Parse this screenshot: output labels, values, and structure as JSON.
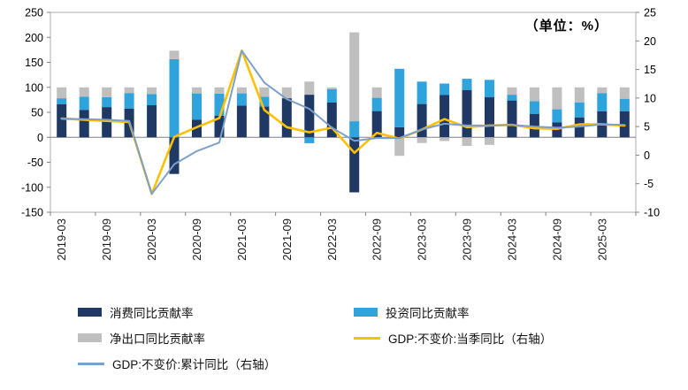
{
  "chart_data": {
    "type": "combo-stacked-bar-line",
    "unit_label": "（单位：%）",
    "categories": [
      "2019-03",
      "2019-06",
      "2019-09",
      "2019-12",
      "2020-03",
      "2020-06",
      "2020-09",
      "2020-12",
      "2021-03",
      "2021-06",
      "2021-09",
      "2021-12",
      "2022-03",
      "2022-06",
      "2022-09",
      "2022-12",
      "2023-03",
      "2023-06",
      "2023-09",
      "2023-12",
      "2024-03",
      "2024-06",
      "2024-09",
      "2024-12",
      "2025-03",
      "2025-06"
    ],
    "x_label_every": 2,
    "bar_series": [
      {
        "name": "消费同比贡献率",
        "color": "#1F3864",
        "axis": "left",
        "values": [
          66.4,
          55.0,
          60.5,
          57.6,
          64.1,
          -73.3,
          34.9,
          43.0,
          63.4,
          61.7,
          78.1,
          85.3,
          69.4,
          -110.0,
          52.4,
          20.0,
          66.6,
          84.5,
          94.8,
          80.0,
          73.7,
          47.0,
          29.8,
          40.0,
          51.7,
          52.3
        ]
      },
      {
        "name": "投资同比贡献率",
        "color": "#2EA3DC",
        "axis": "left",
        "values": [
          11.7,
          26.0,
          19.8,
          31.0,
          22.5,
          156.6,
          52.9,
          44.6,
          24.5,
          19.2,
          0.1,
          -11.6,
          26.9,
          32.1,
          26.7,
          117.0,
          44.8,
          23.0,
          22.3,
          35.0,
          11.6,
          25.5,
          26.3,
          30.0,
          36.8,
          24.7
        ]
      },
      {
        "name": "净出口同比贡献率",
        "color": "#BFBFBF",
        "axis": "left",
        "values": [
          21.9,
          19.0,
          19.7,
          11.4,
          13.4,
          16.7,
          12.2,
          12.4,
          12.1,
          19.1,
          21.8,
          26.3,
          3.7,
          177.9,
          20.9,
          -37.0,
          -11.4,
          -7.5,
          -17.1,
          -15.0,
          14.7,
          27.5,
          43.9,
          30.0,
          11.5,
          23.0
        ]
      }
    ],
    "line_series": [
      {
        "name": "GDP:不变价:当季同比（右轴）",
        "color": "#FFC000",
        "axis": "right",
        "values": [
          6.4,
          6.2,
          6.0,
          5.8,
          -6.8,
          3.2,
          4.9,
          6.5,
          18.3,
          7.9,
          4.9,
          4.0,
          4.8,
          0.4,
          3.9,
          2.9,
          4.5,
          6.3,
          4.9,
          5.2,
          5.3,
          4.7,
          4.6,
          5.4,
          5.4,
          5.2
        ]
      },
      {
        "name": "GDP:不变价:累计同比（右轴）",
        "color": "#7DA0CB",
        "axis": "right",
        "values": [
          6.4,
          6.3,
          6.2,
          6.0,
          -6.8,
          -1.6,
          0.7,
          2.2,
          18.3,
          12.7,
          9.8,
          8.1,
          4.8,
          2.5,
          3.0,
          3.0,
          4.5,
          5.5,
          5.2,
          5.2,
          5.3,
          5.0,
          4.8,
          5.0,
          5.4,
          5.3
        ]
      }
    ],
    "left_axis": {
      "min": -150,
      "max": 250,
      "step": 50,
      "ticks": [
        250,
        200,
        150,
        100,
        50,
        0,
        -50,
        -100,
        -150
      ]
    },
    "right_axis": {
      "min": -10,
      "max": 25,
      "step": 5,
      "ticks": [
        25,
        20,
        15,
        10,
        5,
        0,
        -5,
        -10
      ]
    },
    "grid": "frame-only",
    "legend_position": "bottom"
  }
}
